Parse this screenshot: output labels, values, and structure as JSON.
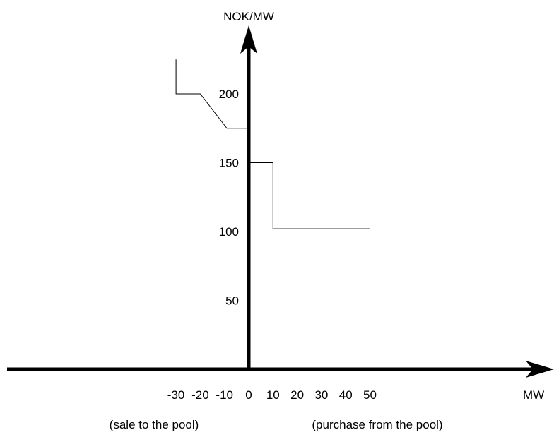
{
  "chart_data": {
    "type": "line",
    "title": "",
    "xlabel": "MW",
    "ylabel": "NOK/MW",
    "xlim": [
      -30,
      50
    ],
    "ylim": [
      0,
      230
    ],
    "x_ticks": [
      -30,
      -20,
      -10,
      0,
      10,
      20,
      30,
      40,
      50
    ],
    "x_tick_labels": [
      "-30",
      "-20",
      "-10",
      "0",
      "10",
      "20",
      "30",
      "40",
      "50"
    ],
    "y_ticks": [
      50,
      100,
      150,
      200
    ],
    "y_tick_labels": [
      "50",
      "100",
      "150",
      "200"
    ],
    "grid": false,
    "legend": "none",
    "annotations": {
      "left": "(sale to the pool)",
      "right": "(purchase from the pool)"
    },
    "series": [
      {
        "points": [
          [
            -30,
            225
          ],
          [
            -30,
            200
          ],
          [
            -20,
            200
          ],
          [
            -9,
            175
          ],
          [
            0,
            175
          ]
        ]
      },
      {
        "points": [
          [
            0,
            150
          ],
          [
            10,
            150
          ],
          [
            10,
            102
          ],
          [
            50,
            102
          ],
          [
            50,
            0
          ]
        ]
      }
    ]
  }
}
